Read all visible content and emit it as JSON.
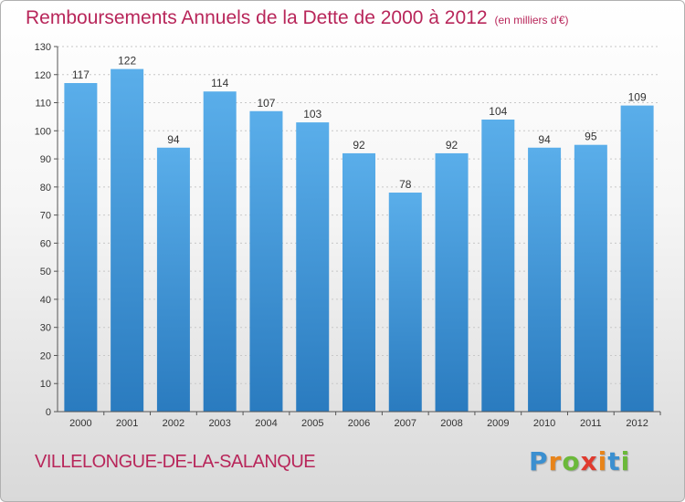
{
  "chart_data": {
    "type": "bar",
    "title": "Remboursements Annuels de la Dette de 2000 à 2012",
    "subtitle": "(en milliers d'€)",
    "categories": [
      "2000",
      "2001",
      "2002",
      "2003",
      "2004",
      "2005",
      "2006",
      "2007",
      "2008",
      "2009",
      "2010",
      "2011",
      "2012"
    ],
    "values": [
      117,
      122,
      94,
      114,
      107,
      103,
      92,
      78,
      92,
      104,
      94,
      95,
      109
    ],
    "ylim": [
      0,
      130
    ],
    "yticks": [
      0,
      10,
      20,
      30,
      40,
      50,
      60,
      70,
      80,
      90,
      100,
      110,
      120,
      130
    ],
    "xlabel": "",
    "ylabel": "",
    "grid": true,
    "legend": "none"
  },
  "commune": "VILLELONGUE-DE-LA-SALANQUE",
  "brand": {
    "letters": [
      "P",
      "r",
      "o",
      "x",
      "i",
      "t",
      "i"
    ],
    "colors": [
      "#3a8fd0",
      "#e8841a",
      "#6bb93a",
      "#e03a2e",
      "#e8841a",
      "#3a8fd0",
      "#6bb93a"
    ]
  },
  "colors": {
    "bar_light": "#5aaeea",
    "bar_dark": "#2a7bbf",
    "title": "#b8265a"
  }
}
